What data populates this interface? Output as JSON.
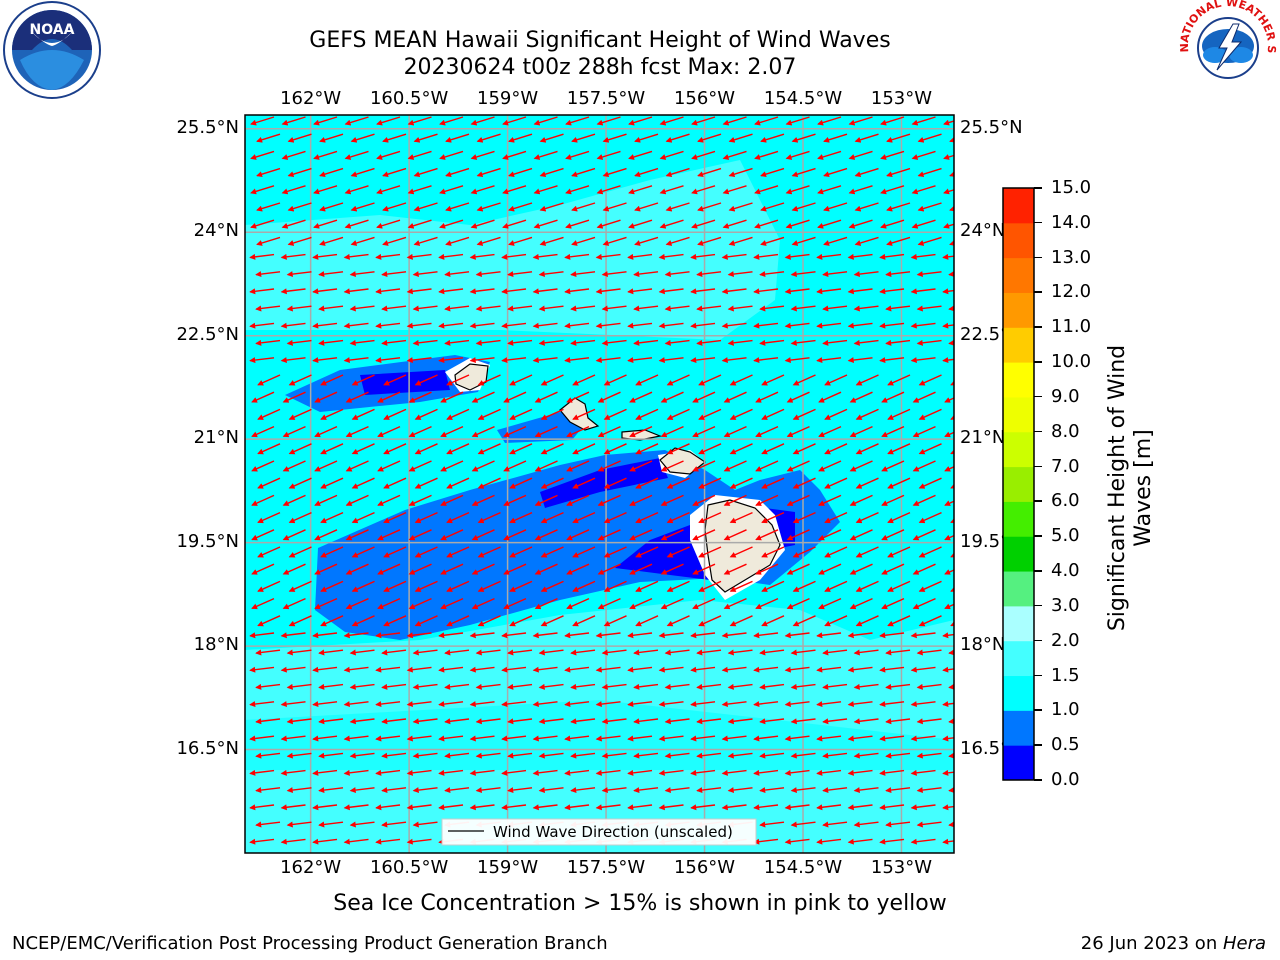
{
  "title": {
    "line1": "GEFS MEAN Hawaii Significant Height of Wind Waves",
    "line2": "20230624 t00z 288h fcst   Max: 2.07"
  },
  "map": {
    "lon_labels": [
      "162°W",
      "160.5°W",
      "159°W",
      "157.5°W",
      "156°W",
      "154.5°W",
      "153°W"
    ],
    "lon_values": [
      -162,
      -160.5,
      -159,
      -157.5,
      -156,
      -154.5,
      -153
    ],
    "lat_labels": [
      "25.5°N",
      "24°N",
      "22.5°N",
      "21°N",
      "19.5°N",
      "18°N",
      "16.5°N"
    ],
    "lat_values": [
      25.5,
      24,
      22.5,
      21,
      19.5,
      18,
      16.5
    ],
    "lon_range": [
      -163.0,
      -152.2
    ],
    "lat_range": [
      15.0,
      25.7
    ],
    "legend_label": "Wind Wave Direction (unscaled)",
    "arrow_color": "#ff0000",
    "land_color": "#efeadb"
  },
  "colorbar": {
    "label_line1": "Significant Height of Wind",
    "label_line2": "Waves [m]",
    "ticks": [
      "0.0",
      "0.5",
      "1.0",
      "1.5",
      "2.0",
      "3.0",
      "4.0",
      "5.0",
      "6.0",
      "7.0",
      "8.0",
      "9.0",
      "10.0",
      "11.0",
      "12.0",
      "13.0",
      "14.0",
      "15.0"
    ],
    "colors": [
      "#0000ff",
      "#0077ff",
      "#00ffff",
      "#44ffff",
      "#aaffff",
      "#55f080",
      "#00d000",
      "#44ee00",
      "#99ee00",
      "#ccff00",
      "#eeff00",
      "#ffff00",
      "#ffcc00",
      "#ff9900",
      "#ff7700",
      "#ff5500",
      "#ff2200",
      "#ff0000"
    ]
  },
  "note": "Sea Ice Concentration > 15% is shown in pink to yellow",
  "footer": {
    "left": "NCEP/EMC/Verification Post Processing Product Generation Branch",
    "right_date": "26 Jun 2023 on ",
    "right_host": "Hera"
  },
  "logos": {
    "noaa_text": "NOAA",
    "nws_text": "NATIONAL WEATHER SERVICE"
  }
}
